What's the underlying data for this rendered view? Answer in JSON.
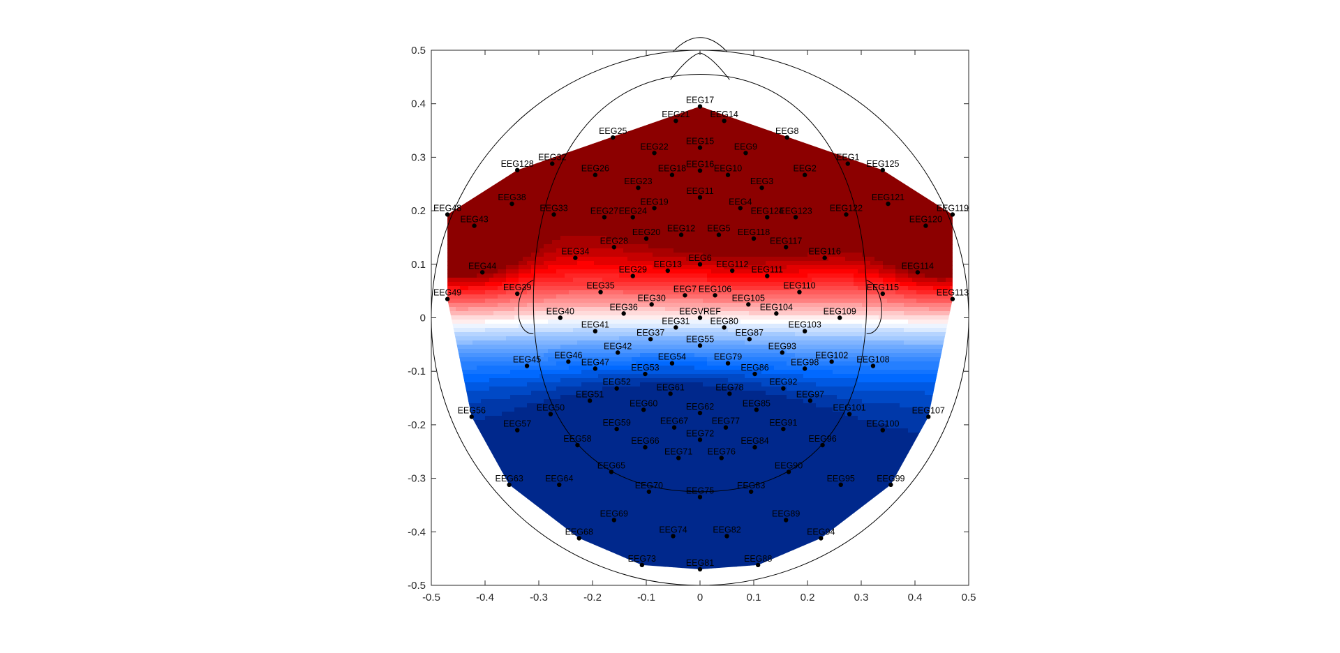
{
  "chart_data": {
    "type": "topoplot",
    "title": "",
    "xlabel": "",
    "ylabel": "",
    "xlim": [
      -0.5,
      0.5
    ],
    "ylim": [
      -0.5,
      0.5
    ],
    "xticks": [
      "-0.5",
      "-0.4",
      "-0.3",
      "-0.2",
      "-0.1",
      "0",
      "0.1",
      "0.2",
      "0.3",
      "0.4",
      "0.5"
    ],
    "yticks": [
      "0.5",
      "0.4",
      "0.3",
      "0.2",
      "0.1",
      "0",
      "-0.1",
      "-0.2",
      "-0.3",
      "-0.4",
      "-0.5"
    ],
    "colormap": {
      "negative": "#00288c",
      "zero": "#ffffff",
      "positive": "#8c0000"
    },
    "electrodes": [
      {
        "label": "EEG17",
        "x": 0.0,
        "y": 0.395
      },
      {
        "label": "EEG21",
        "x": -0.045,
        "y": 0.368
      },
      {
        "label": "EEG14",
        "x": 0.045,
        "y": 0.368
      },
      {
        "label": "EEG25",
        "x": -0.162,
        "y": 0.337
      },
      {
        "label": "EEG8",
        "x": 0.162,
        "y": 0.337
      },
      {
        "label": "EEG22",
        "x": -0.085,
        "y": 0.308
      },
      {
        "label": "EEG15",
        "x": 0.0,
        "y": 0.318
      },
      {
        "label": "EEG9",
        "x": 0.085,
        "y": 0.308
      },
      {
        "label": "EEG128",
        "x": -0.34,
        "y": 0.276
      },
      {
        "label": "EEG32",
        "x": -0.275,
        "y": 0.288
      },
      {
        "label": "EEG1",
        "x": 0.275,
        "y": 0.288
      },
      {
        "label": "EEG125",
        "x": 0.34,
        "y": 0.276
      },
      {
        "label": "EEG26",
        "x": -0.195,
        "y": 0.267
      },
      {
        "label": "EEG18",
        "x": -0.052,
        "y": 0.267
      },
      {
        "label": "EEG16",
        "x": 0.0,
        "y": 0.275
      },
      {
        "label": "EEG10",
        "x": 0.052,
        "y": 0.267
      },
      {
        "label": "EEG2",
        "x": 0.195,
        "y": 0.267
      },
      {
        "label": "EEG23",
        "x": -0.115,
        "y": 0.243
      },
      {
        "label": "EEG3",
        "x": 0.115,
        "y": 0.243
      },
      {
        "label": "EEG11",
        "x": 0.0,
        "y": 0.225
      },
      {
        "label": "EEG38",
        "x": -0.35,
        "y": 0.213
      },
      {
        "label": "EEG121",
        "x": 0.35,
        "y": 0.213
      },
      {
        "label": "EEG48",
        "x": -0.47,
        "y": 0.193
      },
      {
        "label": "EEG119",
        "x": 0.47,
        "y": 0.193
      },
      {
        "label": "EEG33",
        "x": -0.272,
        "y": 0.193
      },
      {
        "label": "EEG122",
        "x": 0.272,
        "y": 0.193
      },
      {
        "label": "EEG19",
        "x": -0.085,
        "y": 0.205
      },
      {
        "label": "EEG4",
        "x": 0.075,
        "y": 0.205
      },
      {
        "label": "EEG27",
        "x": -0.178,
        "y": 0.188
      },
      {
        "label": "EEG24",
        "x": -0.125,
        "y": 0.188
      },
      {
        "label": "EEG124",
        "x": 0.125,
        "y": 0.188
      },
      {
        "label": "EEG123",
        "x": 0.178,
        "y": 0.188
      },
      {
        "label": "EEG43",
        "x": -0.42,
        "y": 0.172
      },
      {
        "label": "EEG120",
        "x": 0.42,
        "y": 0.172
      },
      {
        "label": "EEG20",
        "x": -0.1,
        "y": 0.148
      },
      {
        "label": "EEG12",
        "x": -0.035,
        "y": 0.155
      },
      {
        "label": "EEG5",
        "x": 0.035,
        "y": 0.155
      },
      {
        "label": "EEG118",
        "x": 0.1,
        "y": 0.148
      },
      {
        "label": "EEG28",
        "x": -0.16,
        "y": 0.132
      },
      {
        "label": "EEG117",
        "x": 0.16,
        "y": 0.132
      },
      {
        "label": "EEG34",
        "x": -0.232,
        "y": 0.112
      },
      {
        "label": "EEG116",
        "x": 0.232,
        "y": 0.112
      },
      {
        "label": "EEG6",
        "x": 0.0,
        "y": 0.1
      },
      {
        "label": "EEG44",
        "x": -0.405,
        "y": 0.085
      },
      {
        "label": "EEG114",
        "x": 0.405,
        "y": 0.085
      },
      {
        "label": "EEG13",
        "x": -0.06,
        "y": 0.088
      },
      {
        "label": "EEG112",
        "x": 0.06,
        "y": 0.088
      },
      {
        "label": "EEG29",
        "x": -0.125,
        "y": 0.078
      },
      {
        "label": "EEG111",
        "x": 0.125,
        "y": 0.078
      },
      {
        "label": "EEG35",
        "x": -0.185,
        "y": 0.048
      },
      {
        "label": "EEG110",
        "x": 0.185,
        "y": 0.048
      },
      {
        "label": "EEG39",
        "x": -0.34,
        "y": 0.045
      },
      {
        "label": "EEG115",
        "x": 0.34,
        "y": 0.045
      },
      {
        "label": "EEG7",
        "x": -0.028,
        "y": 0.042
      },
      {
        "label": "EEG106",
        "x": 0.028,
        "y": 0.042
      },
      {
        "label": "EEG49",
        "x": -0.47,
        "y": 0.035
      },
      {
        "label": "EEG113",
        "x": 0.47,
        "y": 0.035
      },
      {
        "label": "EEG30",
        "x": -0.09,
        "y": 0.025
      },
      {
        "label": "EEG105",
        "x": 0.09,
        "y": 0.025
      },
      {
        "label": "EEG36",
        "x": -0.142,
        "y": 0.008
      },
      {
        "label": "EEG104",
        "x": 0.142,
        "y": 0.008
      },
      {
        "label": "EEGVREF",
        "x": 0.0,
        "y": 0.0
      },
      {
        "label": "EEG40",
        "x": -0.26,
        "y": 0.0
      },
      {
        "label": "EEG109",
        "x": 0.26,
        "y": 0.0
      },
      {
        "label": "EEG31",
        "x": -0.045,
        "y": -0.018
      },
      {
        "label": "EEG80",
        "x": 0.045,
        "y": -0.018
      },
      {
        "label": "EEG41",
        "x": -0.195,
        "y": -0.025
      },
      {
        "label": "EEG103",
        "x": 0.195,
        "y": -0.025
      },
      {
        "label": "EEG37",
        "x": -0.092,
        "y": -0.04
      },
      {
        "label": "EEG87",
        "x": 0.092,
        "y": -0.04
      },
      {
        "label": "EEG55",
        "x": 0.0,
        "y": -0.052
      },
      {
        "label": "EEG42",
        "x": -0.153,
        "y": -0.065
      },
      {
        "label": "EEG93",
        "x": 0.153,
        "y": -0.065
      },
      {
        "label": "EEG54",
        "x": -0.052,
        "y": -0.085
      },
      {
        "label": "EEG79",
        "x": 0.052,
        "y": -0.085
      },
      {
        "label": "EEG46",
        "x": -0.245,
        "y": -0.082
      },
      {
        "label": "EEG102",
        "x": 0.245,
        "y": -0.082
      },
      {
        "label": "EEG45",
        "x": -0.322,
        "y": -0.09
      },
      {
        "label": "EEG108",
        "x": 0.322,
        "y": -0.09
      },
      {
        "label": "EEG47",
        "x": -0.195,
        "y": -0.095
      },
      {
        "label": "EEG98",
        "x": 0.195,
        "y": -0.095
      },
      {
        "label": "EEG53",
        "x": -0.102,
        "y": -0.105
      },
      {
        "label": "EEG86",
        "x": 0.102,
        "y": -0.105
      },
      {
        "label": "EEG52",
        "x": -0.155,
        "y": -0.132
      },
      {
        "label": "EEG92",
        "x": 0.155,
        "y": -0.132
      },
      {
        "label": "EEG61",
        "x": -0.055,
        "y": -0.142
      },
      {
        "label": "EEG78",
        "x": 0.055,
        "y": -0.142
      },
      {
        "label": "EEG51",
        "x": -0.205,
        "y": -0.155
      },
      {
        "label": "EEG97",
        "x": 0.205,
        "y": -0.155
      },
      {
        "label": "EEG62",
        "x": 0.0,
        "y": -0.178
      },
      {
        "label": "EEG60",
        "x": -0.105,
        "y": -0.172
      },
      {
        "label": "EEG85",
        "x": 0.105,
        "y": -0.172
      },
      {
        "label": "EEG50",
        "x": -0.278,
        "y": -0.18
      },
      {
        "label": "EEG101",
        "x": 0.278,
        "y": -0.18
      },
      {
        "label": "EEG56",
        "x": -0.425,
        "y": -0.185
      },
      {
        "label": "EEG107",
        "x": 0.425,
        "y": -0.185
      },
      {
        "label": "EEG59",
        "x": -0.155,
        "y": -0.208
      },
      {
        "label": "EEG91",
        "x": 0.155,
        "y": -0.208
      },
      {
        "label": "EEG67",
        "x": -0.048,
        "y": -0.205
      },
      {
        "label": "EEG77",
        "x": 0.048,
        "y": -0.205
      },
      {
        "label": "EEG57",
        "x": -0.34,
        "y": -0.21
      },
      {
        "label": "EEG100",
        "x": 0.34,
        "y": -0.21
      },
      {
        "label": "EEG72",
        "x": 0.0,
        "y": -0.228
      },
      {
        "label": "EEG58",
        "x": -0.228,
        "y": -0.238
      },
      {
        "label": "EEG96",
        "x": 0.228,
        "y": -0.238
      },
      {
        "label": "EEG66",
        "x": -0.102,
        "y": -0.242
      },
      {
        "label": "EEG84",
        "x": 0.102,
        "y": -0.242
      },
      {
        "label": "EEG71",
        "x": -0.04,
        "y": -0.262
      },
      {
        "label": "EEG76",
        "x": 0.04,
        "y": -0.262
      },
      {
        "label": "EEG65",
        "x": -0.165,
        "y": -0.288
      },
      {
        "label": "EEG90",
        "x": 0.165,
        "y": -0.288
      },
      {
        "label": "EEG64",
        "x": -0.262,
        "y": -0.312
      },
      {
        "label": "EEG95",
        "x": 0.262,
        "y": -0.312
      },
      {
        "label": "EEG63",
        "x": -0.355,
        "y": -0.312
      },
      {
        "label": "EEG99",
        "x": 0.355,
        "y": -0.312
      },
      {
        "label": "EEG70",
        "x": -0.095,
        "y": -0.325
      },
      {
        "label": "EEG83",
        "x": 0.095,
        "y": -0.325
      },
      {
        "label": "EEG75",
        "x": 0.0,
        "y": -0.335
      },
      {
        "label": "EEG69",
        "x": -0.16,
        "y": -0.378
      },
      {
        "label": "EEG89",
        "x": 0.16,
        "y": -0.378
      },
      {
        "label": "EEG74",
        "x": -0.05,
        "y": -0.408
      },
      {
        "label": "EEG82",
        "x": 0.05,
        "y": -0.408
      },
      {
        "label": "EEG68",
        "x": -0.225,
        "y": -0.412
      },
      {
        "label": "EEG94",
        "x": 0.225,
        "y": -0.412
      },
      {
        "label": "EEG73",
        "x": -0.108,
        "y": -0.462
      },
      {
        "label": "EEG88",
        "x": 0.108,
        "y": -0.462
      },
      {
        "label": "EEG81",
        "x": 0.0,
        "y": -0.47
      }
    ]
  }
}
